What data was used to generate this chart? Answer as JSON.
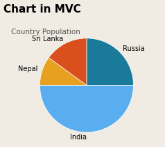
{
  "title": "Chart in MVC",
  "legend_title": "Country Population",
  "labels": [
    "Russia",
    "India",
    "Nepal",
    "Sri Lanka"
  ],
  "values": [
    25,
    50,
    10,
    15
  ],
  "colors": [
    "#1a7a9a",
    "#5aadee",
    "#e8a020",
    "#d94f1e"
  ],
  "title_fontsize": 11,
  "title_fontweight": "bold",
  "title_color": "#000000",
  "background_color": "#f0ece4",
  "startangle": 90,
  "label_fontsize": 7,
  "legend_title_fontsize": 7.5,
  "legend_title_color": "#555555"
}
